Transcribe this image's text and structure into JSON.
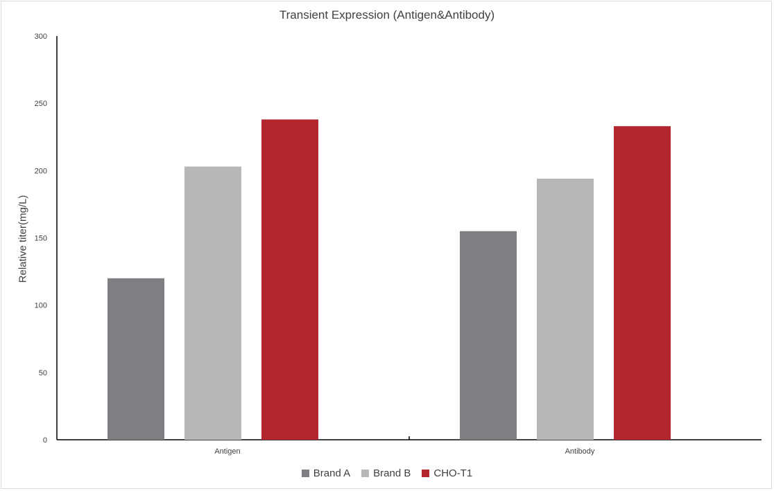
{
  "chart_data": {
    "type": "bar",
    "title": "Transient Expression (Antigen&Antibody)",
    "xlabel": "",
    "ylabel": "Relative titer(mg/L)",
    "categories": [
      "Antigen",
      "Antibody"
    ],
    "series": [
      {
        "name": "Brand A",
        "color": "#7f7f83",
        "values": [
          120,
          155
        ]
      },
      {
        "name": "Brand B",
        "color": "#b7b7b8",
        "values": [
          203,
          194
        ]
      },
      {
        "name": "CHO-T1",
        "color": "#b2262e",
        "values": [
          238,
          233
        ]
      }
    ],
    "ylim": [
      0,
      300
    ],
    "yticks": [
      0,
      50,
      100,
      150,
      200,
      250,
      300
    ],
    "grid": false,
    "legend_position": "bottom"
  }
}
